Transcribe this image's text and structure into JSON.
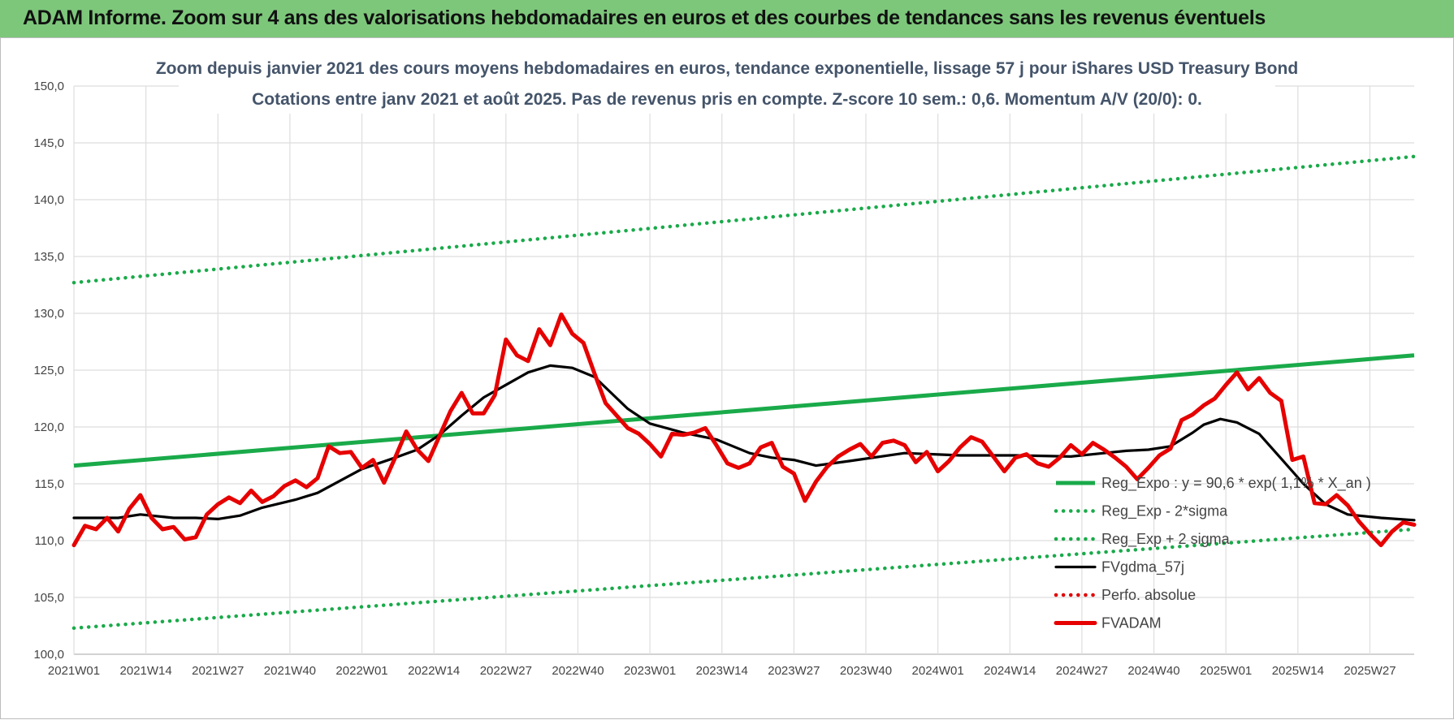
{
  "header": {
    "title": "ADAM Informe. Zoom sur 4 ans des valorisations hebdomadaires en euros et des courbes de tendances sans les revenus éventuels"
  },
  "chart_data": {
    "type": "line",
    "title_line1": "Zoom depuis janvier 2021 des cours moyens hebdomadaires en euros, tendance exponentielle, lissage 57 j pour iShares USD Treasury Bond",
    "title_line2": "Cotations entre janv 2021 et août 2025. Pas de revenus pris en compte. Z-score 10 sem.: 0,6. Momentum A/V (20/0): 0.",
    "xlabel": "",
    "ylabel": "",
    "ylim": [
      100,
      150
    ],
    "y_ticks": [
      "100,0",
      "105,0",
      "110,0",
      "115,0",
      "120,0",
      "125,0",
      "130,0",
      "135,0",
      "140,0",
      "145,0",
      "150,0"
    ],
    "x_ticks": [
      "2021W01",
      "2021W14",
      "2021W27",
      "2021W40",
      "2022W01",
      "2022W14",
      "2022W27",
      "2022W40",
      "2023W01",
      "2023W14",
      "2023W27",
      "2023W40",
      "2024W01",
      "2024W14",
      "2024W27",
      "2024W40",
      "2025W01",
      "2025W14",
      "2025W27"
    ],
    "x_week_range": [
      0,
      242
    ],
    "grid": true,
    "legend_position": "bottom-right",
    "series": [
      {
        "name": "Reg_Expo : y = 90,6 * exp( 1,1% * X_an )",
        "color": "#1aaa4a",
        "style": "solid",
        "x": [
          0,
          242
        ],
        "values": [
          116.6,
          126.3
        ]
      },
      {
        "name": "Reg_Exp - 2*sigma",
        "color": "#1aaa4a",
        "style": "dotted",
        "x": [
          0,
          242
        ],
        "values": [
          102.3,
          111.0
        ]
      },
      {
        "name": "Reg_Exp + 2 sigma",
        "color": "#1aaa4a",
        "style": "dotted",
        "x": [
          0,
          242
        ],
        "values": [
          132.7,
          143.8
        ]
      },
      {
        "name": "FVgdma_57j",
        "color": "#000000",
        "style": "solid",
        "x": [
          0,
          8,
          12,
          18,
          22,
          26,
          30,
          34,
          40,
          44,
          52,
          58,
          62,
          66,
          70,
          74,
          78,
          82,
          86,
          90,
          94,
          100,
          104,
          110,
          116,
          122,
          126,
          130,
          134,
          140,
          150,
          160,
          170,
          180,
          186,
          190,
          194,
          198,
          202,
          204,
          207,
          210,
          214,
          218,
          222,
          226,
          230,
          236,
          242
        ],
        "values": [
          112.0,
          112.0,
          112.3,
          112.0,
          112.0,
          111.9,
          112.2,
          112.9,
          113.6,
          114.2,
          116.3,
          117.3,
          118.0,
          119.3,
          121.0,
          122.6,
          123.7,
          124.8,
          125.4,
          125.2,
          124.4,
          121.6,
          120.3,
          119.5,
          118.9,
          117.7,
          117.3,
          117.1,
          116.6,
          117.0,
          117.7,
          117.5,
          117.5,
          117.4,
          117.7,
          117.9,
          118.0,
          118.3,
          119.5,
          120.2,
          120.7,
          120.4,
          119.4,
          117.2,
          115.0,
          113.2,
          112.3,
          112.0,
          111.8
        ]
      },
      {
        "name": "Perfo. absolue",
        "color": "#e00000",
        "style": "dotted",
        "x": [],
        "values": []
      },
      {
        "name": "FVADAM",
        "color": "#e60000",
        "style": "solid",
        "x": [
          0,
          2,
          4,
          6,
          8,
          10,
          12,
          14,
          16,
          18,
          20,
          22,
          24,
          26,
          28,
          30,
          32,
          34,
          36,
          38,
          40,
          42,
          44,
          46,
          48,
          50,
          52,
          54,
          56,
          58,
          60,
          62,
          64,
          66,
          68,
          70,
          72,
          74,
          76,
          78,
          80,
          82,
          84,
          86,
          88,
          90,
          92,
          94,
          96,
          98,
          100,
          102,
          104,
          106,
          108,
          110,
          112,
          114,
          116,
          118,
          120,
          122,
          124,
          126,
          128,
          130,
          132,
          134,
          136,
          138,
          140,
          142,
          144,
          146,
          148,
          150,
          152,
          154,
          156,
          158,
          160,
          162,
          164,
          166,
          168,
          170,
          172,
          174,
          176,
          178,
          180,
          182,
          184,
          186,
          188,
          190,
          192,
          194,
          196,
          198,
          200,
          202,
          204,
          206,
          208,
          210,
          212,
          214,
          216,
          218,
          220,
          222,
          224,
          226,
          228,
          230,
          232,
          234,
          236,
          238,
          240,
          242
        ],
        "values": [
          109.6,
          111.3,
          111.0,
          112.0,
          110.8,
          112.8,
          114.0,
          112.0,
          111.0,
          111.2,
          110.1,
          110.3,
          112.3,
          113.2,
          113.8,
          113.3,
          114.4,
          113.4,
          113.9,
          114.8,
          115.3,
          114.7,
          115.5,
          118.3,
          117.7,
          117.8,
          116.4,
          117.1,
          115.1,
          117.3,
          119.6,
          118.0,
          117.0,
          119.2,
          121.4,
          123.0,
          121.2,
          121.2,
          122.8,
          127.7,
          126.3,
          125.8,
          128.6,
          127.2,
          129.9,
          128.2,
          127.4,
          124.7,
          122.1,
          121.0,
          119.9,
          119.4,
          118.5,
          117.4,
          119.4,
          119.3,
          119.5,
          119.9,
          118.4,
          116.8,
          116.4,
          116.8,
          118.2,
          118.6,
          116.5,
          115.9,
          113.5,
          115.2,
          116.5,
          117.4,
          118.0,
          118.5,
          117.4,
          118.6,
          118.8,
          118.4,
          116.9,
          117.8,
          116.1,
          117.0,
          118.2,
          119.1,
          118.7,
          117.4,
          116.1,
          117.3,
          117.6,
          116.8,
          116.5,
          117.3,
          118.4,
          117.6,
          118.6,
          118.0,
          117.3,
          116.5,
          115.4,
          116.4,
          117.5,
          118.1,
          120.6,
          121.1,
          121.9,
          122.5,
          123.7,
          124.8,
          123.3,
          124.3,
          123.0,
          122.3,
          117.1,
          117.4,
          113.3,
          113.2,
          114.0,
          113.1,
          111.7,
          110.6,
          109.6,
          110.8,
          111.6,
          111.4
        ]
      }
    ]
  }
}
